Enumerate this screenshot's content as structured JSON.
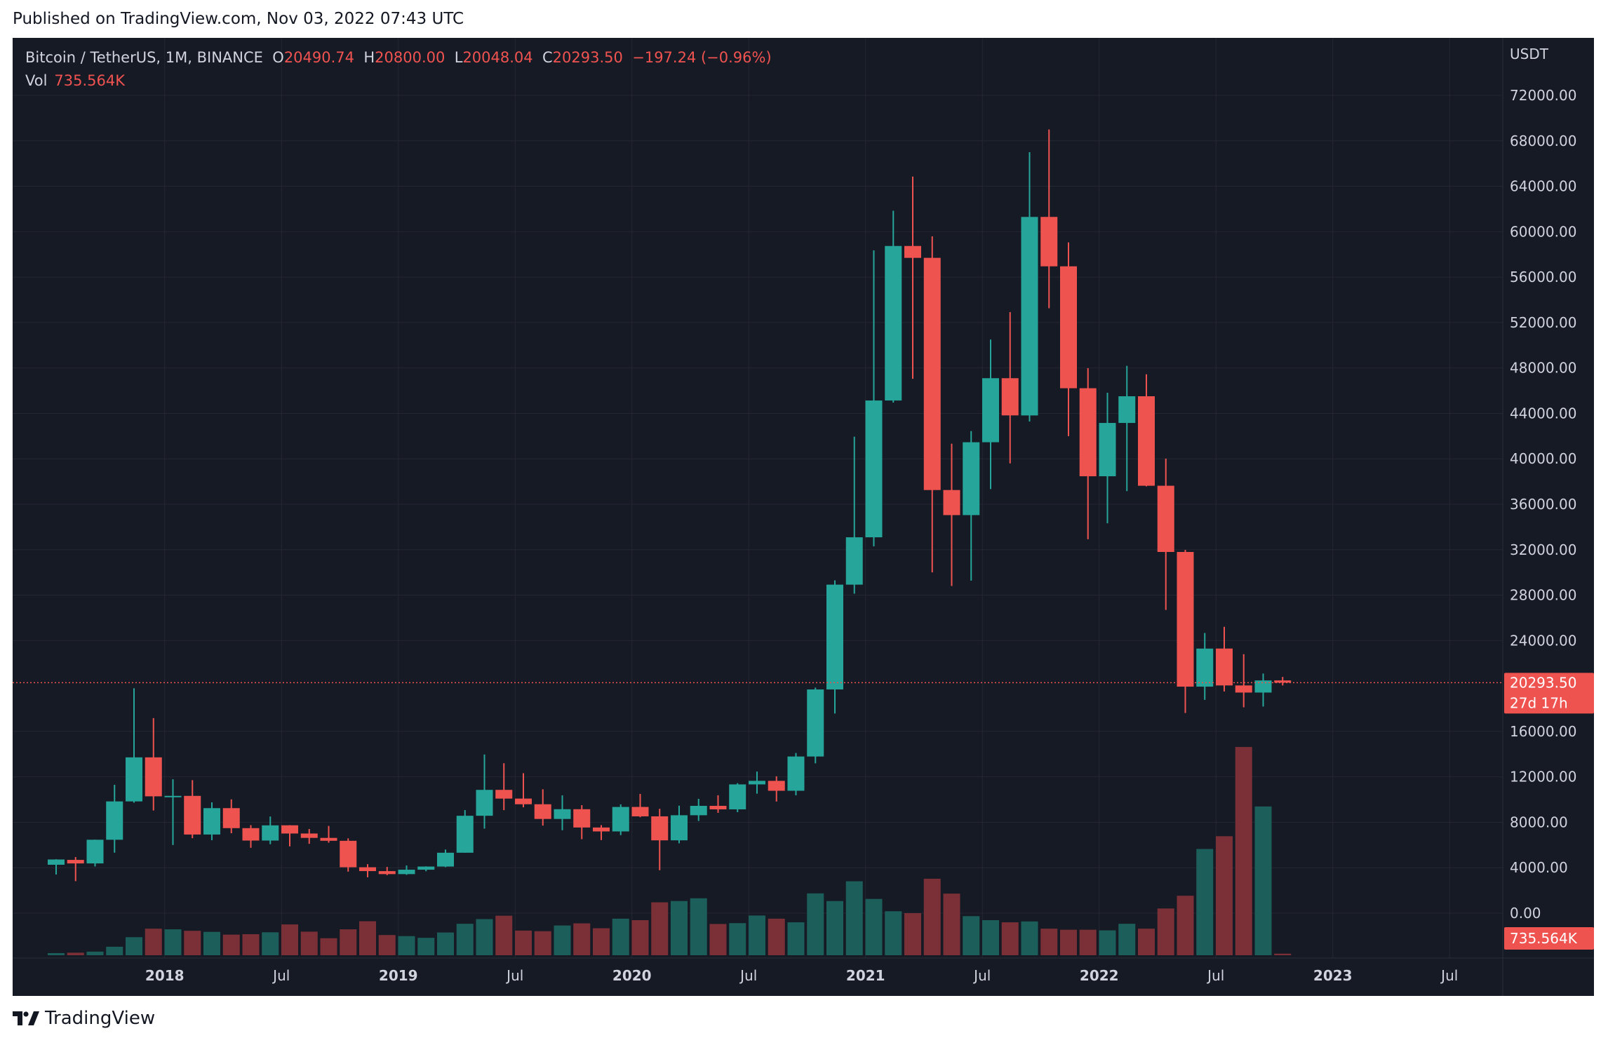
{
  "published": "Published on TradingView.com, Nov 03, 2022 07:43 UTC",
  "logo_text": "TradingView",
  "legend": {
    "symbol": "Bitcoin / TetherUS, 1M, BINANCE",
    "o_label": "O",
    "o_value": "20490.74",
    "h_label": "H",
    "h_value": "20800.00",
    "l_label": "L",
    "l_value": "20048.04",
    "c_label": "C",
    "c_value": "20293.50",
    "change": "−197.24 (−0.96%)",
    "vol_label": "Vol",
    "vol_value": "735.564K"
  },
  "colors": {
    "background": "#161a25",
    "up": "#26a69a",
    "down": "#ef5350",
    "up_volume": "#1b5e5a",
    "down_volume": "#7a3036",
    "grid": "#242733",
    "axis_text": "#d1d4dc"
  },
  "chart_data": {
    "type": "candlestick",
    "title": "Bitcoin / TetherUS, 1M, BINANCE",
    "y_unit_label": "USDT",
    "y_ticks": [
      "72000.00",
      "68000.00",
      "64000.00",
      "60000.00",
      "56000.00",
      "52000.00",
      "48000.00",
      "44000.00",
      "40000.00",
      "36000.00",
      "32000.00",
      "28000.00",
      "24000.00",
      "16000.00",
      "12000.00",
      "8000.00",
      "4000.00",
      "0.00"
    ],
    "x_ticks": [
      "2018",
      "Jul",
      "2019",
      "Jul",
      "2020",
      "Jul",
      "2021",
      "Jul",
      "2022",
      "Jul",
      "2023",
      "Jul"
    ],
    "ylim": [
      0,
      74000
    ],
    "last_price": "20293.50",
    "countdown": "27d 17h",
    "last_volume": "735.564K",
    "candles": [
      {
        "t": "2017-08",
        "o": 4261,
        "h": 4745,
        "l": 3400,
        "c": 4724,
        "v": 1000
      },
      {
        "t": "2017-09",
        "o": 4689,
        "h": 4939,
        "l": 2817,
        "c": 4378,
        "v": 1200
      },
      {
        "t": "2017-10",
        "o": 4378,
        "h": 6470,
        "l": 4110,
        "c": 6463,
        "v": 1700
      },
      {
        "t": "2017-11",
        "o": 6463,
        "h": 11300,
        "l": 5325,
        "c": 9838,
        "v": 4000
      },
      {
        "t": "2017-12",
        "o": 9838,
        "h": 19798,
        "l": 9722,
        "c": 13716,
        "v": 8500
      },
      {
        "t": "2018-01",
        "o": 13716,
        "h": 17176,
        "l": 9035,
        "c": 10285,
        "v": 12500
      },
      {
        "t": "2018-02",
        "o": 10285,
        "h": 11786,
        "l": 6000,
        "c": 10326,
        "v": 12200
      },
      {
        "t": "2018-03",
        "o": 10325,
        "h": 11710,
        "l": 6600,
        "c": 6923,
        "v": 11500
      },
      {
        "t": "2018-04",
        "o": 6923,
        "h": 9759,
        "l": 6425,
        "c": 9246,
        "v": 11000
      },
      {
        "t": "2018-05",
        "o": 9246,
        "h": 10020,
        "l": 7034,
        "c": 7485,
        "v": 9700
      },
      {
        "t": "2018-06",
        "o": 7485,
        "h": 7752,
        "l": 5755,
        "c": 6391,
        "v": 9900
      },
      {
        "t": "2018-07",
        "o": 6391,
        "h": 8507,
        "l": 6070,
        "c": 7730,
        "v": 10800
      },
      {
        "t": "2018-08",
        "o": 7735,
        "h": 7750,
        "l": 5880,
        "c": 7011,
        "v": 14500
      },
      {
        "t": "2018-09",
        "o": 7012,
        "h": 7410,
        "l": 6100,
        "c": 6626,
        "v": 11100
      },
      {
        "t": "2018-10",
        "o": 6626,
        "h": 7680,
        "l": 6205,
        "c": 6371,
        "v": 8000
      },
      {
        "t": "2018-11",
        "o": 6370,
        "h": 6585,
        "l": 3652,
        "c": 4041,
        "v": 12200
      },
      {
        "t": "2018-12",
        "o": 4041,
        "h": 4312,
        "l": 3156,
        "c": 3702,
        "v": 16000
      },
      {
        "t": "2019-01",
        "o": 3701,
        "h": 4069,
        "l": 3349,
        "c": 3437,
        "v": 9500
      },
      {
        "t": "2019-02",
        "o": 3437,
        "h": 4198,
        "l": 3374,
        "c": 3826,
        "v": 9000
      },
      {
        "t": "2019-03",
        "o": 3826,
        "h": 4120,
        "l": 3690,
        "c": 4102,
        "v": 8200
      },
      {
        "t": "2019-04",
        "o": 4102,
        "h": 5600,
        "l": 4053,
        "c": 5320,
        "v": 10700
      },
      {
        "t": "2019-05",
        "o": 5320,
        "h": 9075,
        "l": 5320,
        "c": 8574,
        "v": 14800
      },
      {
        "t": "2019-06",
        "o": 8574,
        "h": 13970,
        "l": 7440,
        "c": 10854,
        "v": 17000
      },
      {
        "t": "2019-07",
        "o": 10854,
        "h": 13200,
        "l": 9070,
        "c": 10086,
        "v": 18600
      },
      {
        "t": "2019-08",
        "o": 10087,
        "h": 12325,
        "l": 9320,
        "c": 9588,
        "v": 11600
      },
      {
        "t": "2019-09",
        "o": 9588,
        "h": 10905,
        "l": 7710,
        "c": 8294,
        "v": 11300
      },
      {
        "t": "2019-10",
        "o": 8294,
        "h": 10370,
        "l": 7300,
        "c": 9152,
        "v": 14000
      },
      {
        "t": "2019-11",
        "o": 9152,
        "h": 9505,
        "l": 6515,
        "c": 7541,
        "v": 15000
      },
      {
        "t": "2019-12",
        "o": 7541,
        "h": 7750,
        "l": 6435,
        "c": 7195,
        "v": 12700
      },
      {
        "t": "2020-01",
        "o": 7195,
        "h": 9578,
        "l": 6871,
        "c": 9350,
        "v": 17200
      },
      {
        "t": "2020-02",
        "o": 9351,
        "h": 10500,
        "l": 8445,
        "c": 8523,
        "v": 16500
      },
      {
        "t": "2020-03",
        "o": 8523,
        "h": 9188,
        "l": 3782,
        "c": 6410,
        "v": 24900
      },
      {
        "t": "2020-04",
        "o": 6412,
        "h": 9460,
        "l": 6150,
        "c": 8620,
        "v": 25500
      },
      {
        "t": "2020-05",
        "o": 8620,
        "h": 10067,
        "l": 8117,
        "c": 9448,
        "v": 26800
      },
      {
        "t": "2020-06",
        "o": 9448,
        "h": 10380,
        "l": 8833,
        "c": 9138,
        "v": 14700
      },
      {
        "t": "2020-07",
        "o": 9138,
        "h": 11444,
        "l": 8893,
        "c": 11335,
        "v": 15100
      },
      {
        "t": "2020-08",
        "o": 11335,
        "h": 12468,
        "l": 10518,
        "c": 11650,
        "v": 18700
      },
      {
        "t": "2020-09",
        "o": 11649,
        "h": 12050,
        "l": 9825,
        "c": 10776,
        "v": 17200
      },
      {
        "t": "2020-10",
        "o": 10776,
        "h": 14100,
        "l": 10374,
        "c": 13791,
        "v": 15500
      },
      {
        "t": "2020-11",
        "o": 13791,
        "h": 19863,
        "l": 13195,
        "c": 19695,
        "v": 29100
      },
      {
        "t": "2020-12",
        "o": 19695,
        "h": 29300,
        "l": 17572,
        "c": 28923,
        "v": 25500
      },
      {
        "t": "2021-01",
        "o": 28923,
        "h": 41950,
        "l": 28130,
        "c": 33093,
        "v": 34800
      },
      {
        "t": "2021-02",
        "o": 33092,
        "h": 58352,
        "l": 32296,
        "c": 45136,
        "v": 26500
      },
      {
        "t": "2021-03",
        "o": 45135,
        "h": 61844,
        "l": 44950,
        "c": 58740,
        "v": 20700
      },
      {
        "t": "2021-04",
        "o": 58740,
        "h": 64854,
        "l": 47044,
        "c": 57694,
        "v": 19800
      },
      {
        "t": "2021-05",
        "o": 57697,
        "h": 59592,
        "l": 30000,
        "c": 37253,
        "v": 36000
      },
      {
        "t": "2021-06",
        "o": 37254,
        "h": 41330,
        "l": 28805,
        "c": 35045,
        "v": 29000
      },
      {
        "t": "2021-07",
        "o": 35045,
        "h": 42448,
        "l": 29278,
        "c": 41461,
        "v": 18400
      },
      {
        "t": "2021-08",
        "o": 41461,
        "h": 50500,
        "l": 37332,
        "c": 47100,
        "v": 16500
      },
      {
        "t": "2021-09",
        "o": 47100,
        "h": 52920,
        "l": 39600,
        "c": 43824,
        "v": 15500
      },
      {
        "t": "2021-10",
        "o": 43820,
        "h": 67000,
        "l": 43283,
        "c": 61299,
        "v": 15900
      },
      {
        "t": "2021-11",
        "o": 61300,
        "h": 69000,
        "l": 53256,
        "c": 56950,
        "v": 12500
      },
      {
        "t": "2021-12",
        "o": 56950,
        "h": 59053,
        "l": 42000,
        "c": 46216,
        "v": 12000
      },
      {
        "t": "2022-01",
        "o": 46217,
        "h": 47990,
        "l": 32917,
        "c": 38466,
        "v": 12000
      },
      {
        "t": "2022-02",
        "o": 38466,
        "h": 45821,
        "l": 34322,
        "c": 43160,
        "v": 11700
      },
      {
        "t": "2022-03",
        "o": 43160,
        "h": 48189,
        "l": 37155,
        "c": 45510,
        "v": 14800
      },
      {
        "t": "2022-04",
        "o": 45510,
        "h": 47444,
        "l": 37578,
        "c": 37630,
        "v": 12500
      },
      {
        "t": "2022-05",
        "o": 37631,
        "h": 40023,
        "l": 26700,
        "c": 31801,
        "v": 22000
      },
      {
        "t": "2022-06",
        "o": 31801,
        "h": 31986,
        "l": 17622,
        "c": 19942,
        "v": 28000
      },
      {
        "t": "2022-07",
        "o": 19942,
        "h": 24668,
        "l": 18781,
        "c": 23293,
        "v": 50000
      },
      {
        "t": "2022-08",
        "o": 23296,
        "h": 25211,
        "l": 19520,
        "c": 20050,
        "v": 56000
      },
      {
        "t": "2022-09",
        "o": 20049,
        "h": 22799,
        "l": 18125,
        "c": 19423,
        "v": 98000
      },
      {
        "t": "2022-10",
        "o": 19423,
        "h": 21095,
        "l": 18190,
        "c": 20491,
        "v": 70000
      },
      {
        "t": "2022-11",
        "o": 20490.74,
        "h": 20800,
        "l": 20048.04,
        "c": 20293.5,
        "v": 735.564
      }
    ]
  }
}
